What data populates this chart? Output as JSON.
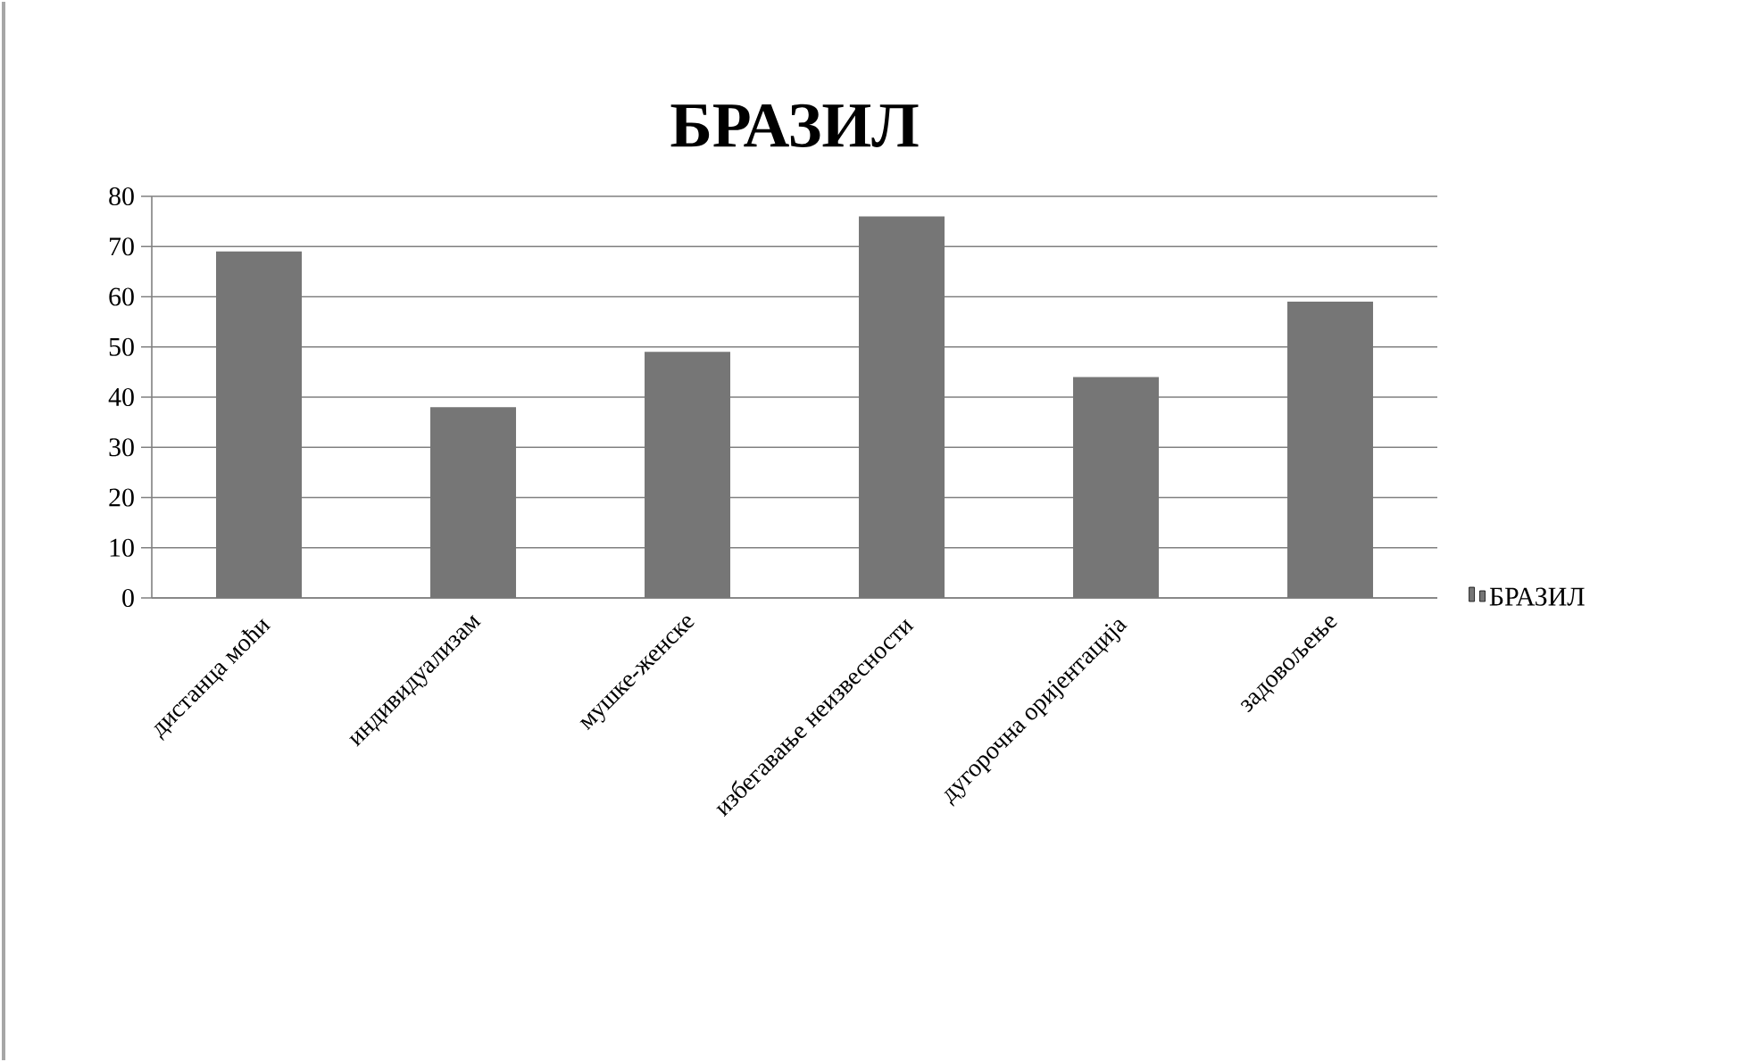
{
  "chart_data": {
    "type": "bar",
    "title": "БРАЗИЛ",
    "categories": [
      "дистанца моћи",
      "индивидуализам",
      "мушке-женске",
      "избегавање неизвесности",
      "дугорочна оријентација",
      "задовољење"
    ],
    "series": [
      {
        "name": "БРАЗИЛ",
        "color": "#767676",
        "values": [
          69,
          38,
          49,
          76,
          44,
          59
        ]
      }
    ],
    "ylim": [
      0,
      80
    ],
    "yticks": [
      0,
      10,
      20,
      30,
      40,
      50,
      60,
      70,
      80
    ],
    "grid": "y",
    "legend": "right"
  }
}
